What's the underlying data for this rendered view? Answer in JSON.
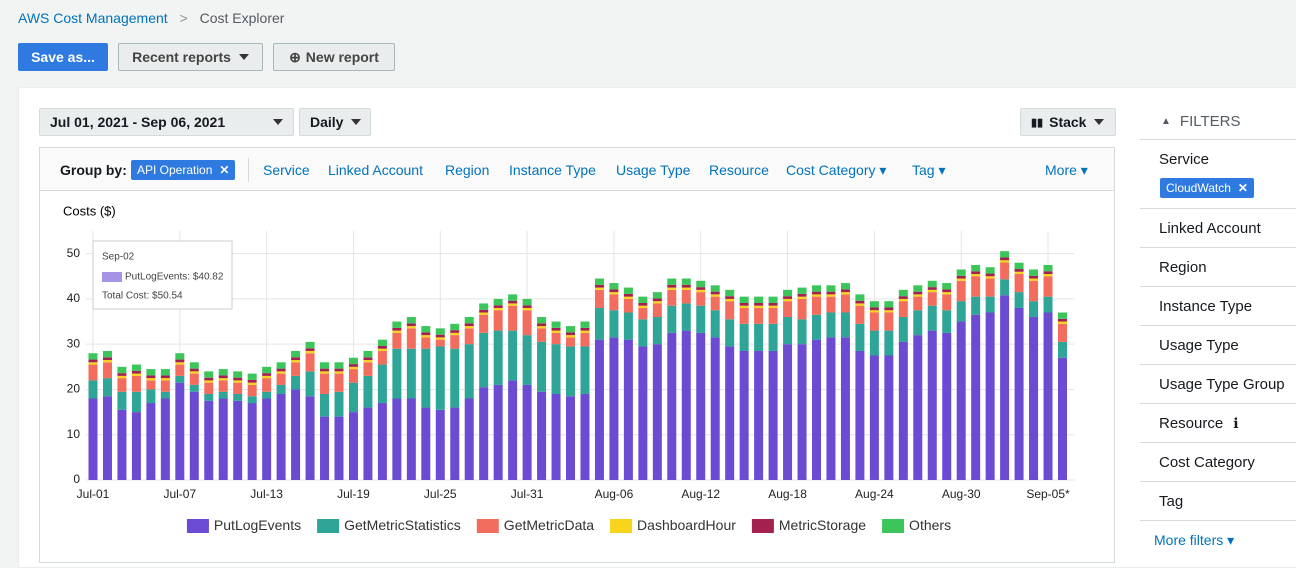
{
  "breadcrumb": {
    "root": "AWS Cost Management",
    "current": "Cost Explorer"
  },
  "toolbar": {
    "save": "Save as...",
    "recent": "Recent reports",
    "new": "New report"
  },
  "controls": {
    "date_range": "Jul 01, 2021 - Sep 06, 2021",
    "granularity": "Daily",
    "chart_style": "Stack"
  },
  "group_by": {
    "label": "Group by:",
    "selected": "API Operation",
    "options": [
      "Service",
      "Linked Account",
      "Region",
      "Instance Type",
      "Usage Type",
      "Resource",
      "Cost Category",
      "Tag",
      "More"
    ]
  },
  "filters": {
    "title": "FILTERS",
    "items": [
      "Service",
      "Linked Account",
      "Region",
      "Instance Type",
      "Usage Type",
      "Usage Type Group",
      "Resource",
      "Cost Category",
      "Tag"
    ],
    "service_chip": "CloudWatch",
    "more": "More filters"
  },
  "chart_data": {
    "type": "bar",
    "stacked": true,
    "y_label": "Costs ($)",
    "ylim": [
      0,
      55
    ],
    "yticks": [
      0,
      10,
      20,
      30,
      40,
      50
    ],
    "grid": true,
    "legend": "bottom",
    "categories": [
      "Jul-01",
      null,
      null,
      null,
      null,
      null,
      "Jul-07",
      null,
      null,
      null,
      null,
      null,
      "Jul-13",
      null,
      null,
      null,
      null,
      null,
      "Jul-19",
      null,
      null,
      null,
      null,
      null,
      "Jul-25",
      null,
      null,
      null,
      null,
      null,
      "Jul-31",
      null,
      null,
      null,
      null,
      null,
      "Aug-06",
      null,
      null,
      null,
      null,
      null,
      "Aug-12",
      null,
      null,
      null,
      null,
      null,
      "Aug-18",
      null,
      null,
      null,
      null,
      null,
      "Aug-24",
      null,
      null,
      null,
      null,
      null,
      "Aug-30",
      null,
      null,
      null,
      null,
      null,
      "Sep-05*",
      null
    ],
    "series": [
      {
        "name": "PutLogEvents",
        "color": "#6b4bd1",
        "values": [
          18,
          18.5,
          15.5,
          15,
          17,
          18,
          21.5,
          19.5,
          17.5,
          18,
          17.5,
          17,
          18,
          19,
          20,
          18.5,
          14,
          14,
          15,
          16,
          17,
          18,
          18,
          16,
          15.5,
          16,
          18,
          20.5,
          21,
          22,
          21,
          19.5,
          19,
          18.5,
          19,
          31,
          31.5,
          31,
          29.5,
          30,
          32.5,
          33,
          32.5,
          31.5,
          29.5,
          28.5,
          28.5,
          28.5,
          30,
          30,
          31,
          31.5,
          31.5,
          28.5,
          27.5,
          27.5,
          30.5,
          32,
          33,
          32.5,
          35,
          36.5,
          37,
          40.82,
          38,
          36,
          37,
          27
        ]
      },
      {
        "name": "GetMetricStatistics",
        "color": "#2ea597",
        "values": [
          4,
          4,
          4,
          4.5,
          3,
          1.5,
          1.5,
          1.5,
          1.5,
          1.5,
          1.5,
          1.5,
          1.5,
          2,
          3,
          5.5,
          5,
          5.5,
          6.5,
          7,
          8.5,
          11,
          11,
          13,
          14,
          13,
          12,
          12,
          12,
          11,
          11,
          11,
          11,
          11,
          10.5,
          7,
          6,
          6,
          6,
          6,
          6,
          6,
          6,
          6,
          6,
          6,
          6,
          6,
          6,
          5.5,
          5.5,
          5.5,
          5.5,
          6,
          5.5,
          5.5,
          5.5,
          5.5,
          5.5,
          5,
          4.5,
          4,
          3.5,
          3.5,
          3.5,
          3.5,
          3.5,
          3.5
        ]
      },
      {
        "name": "GetMetricData",
        "color": "#f36d5f",
        "values": [
          3.5,
          3.5,
          3,
          3.5,
          2,
          2.5,
          2.5,
          2.5,
          2.5,
          2.5,
          2.5,
          2.5,
          3,
          2.5,
          3,
          4,
          4.5,
          4,
          3,
          3,
          3,
          3.5,
          4.5,
          2.5,
          1.5,
          3,
          3.5,
          4,
          4.5,
          5.5,
          5.5,
          3,
          2.5,
          2,
          3,
          4,
          3.5,
          3,
          2.5,
          3,
          3.5,
          3,
          3,
          3,
          4,
          3.5,
          3.5,
          3.5,
          3.5,
          4.5,
          4,
          3.5,
          4,
          4,
          4,
          4,
          3.5,
          3,
          3,
          3.5,
          4.5,
          4.5,
          4,
          3.72,
          4,
          4.5,
          4.5,
          4
        ]
      },
      {
        "name": "DashboardHour",
        "color": "#f8d41c",
        "values": [
          0.5,
          0.5,
          0.5,
          0.5,
          0.5,
          0.5,
          0.5,
          0.5,
          0.5,
          0.5,
          0.5,
          0.5,
          0.5,
          0.5,
          0.5,
          0.5,
          0.5,
          0.5,
          0.5,
          0.5,
          0.5,
          0.5,
          0.5,
          0.5,
          0.5,
          0.5,
          0.5,
          0.5,
          0.5,
          0.5,
          0.5,
          0.5,
          0.5,
          0.5,
          0.5,
          0.5,
          0.5,
          0.5,
          0.5,
          0.5,
          0.5,
          0.5,
          0.5,
          0.5,
          0.5,
          0.5,
          0.5,
          0.5,
          0.5,
          0.5,
          0.5,
          0.5,
          0.5,
          0.5,
          0.5,
          0.5,
          0.5,
          0.5,
          0.5,
          0.5,
          0.5,
          0.5,
          0.5,
          0.5,
          0.5,
          0.5,
          0.5,
          0.5
        ]
      },
      {
        "name": "MetricStorage",
        "color": "#a3214f",
        "values": [
          0.6,
          0.6,
          0.6,
          0.6,
          0.6,
          0.6,
          0.6,
          0.6,
          0.6,
          0.6,
          0.6,
          0.6,
          0.6,
          0.6,
          0.6,
          0.6,
          0.6,
          0.6,
          0.6,
          0.6,
          0.6,
          0.6,
          0.6,
          0.6,
          0.6,
          0.6,
          0.6,
          0.6,
          0.6,
          0.6,
          0.6,
          0.6,
          0.6,
          0.6,
          0.6,
          0.6,
          0.6,
          0.6,
          0.6,
          0.6,
          0.6,
          0.6,
          0.6,
          0.6,
          0.6,
          0.6,
          0.6,
          0.6,
          0.6,
          0.6,
          0.6,
          0.6,
          0.6,
          0.6,
          0.6,
          0.6,
          0.6,
          0.6,
          0.6,
          0.6,
          0.6,
          0.6,
          0.6,
          0.6,
          0.6,
          0.6,
          0.6,
          0.6
        ]
      },
      {
        "name": "Others",
        "color": "#3cc55a",
        "values": [
          1.4,
          1.4,
          1.4,
          1.4,
          1.4,
          1.4,
          1.4,
          1.4,
          1.4,
          1.4,
          1.4,
          1.4,
          1.4,
          1.4,
          1.4,
          1.4,
          1.4,
          1.4,
          1.4,
          1.4,
          1.4,
          1.4,
          1.4,
          1.4,
          1.4,
          1.4,
          1.4,
          1.4,
          1.4,
          1.4,
          1.4,
          1.4,
          1.4,
          1.4,
          1.4,
          1.4,
          1.4,
          1.4,
          1.4,
          1.4,
          1.4,
          1.4,
          1.4,
          1.4,
          1.4,
          1.4,
          1.4,
          1.4,
          1.4,
          1.4,
          1.4,
          1.4,
          1.4,
          1.4,
          1.4,
          1.4,
          1.4,
          1.4,
          1.4,
          1.4,
          1.4,
          1.4,
          1.4,
          1.4,
          1.4,
          1.4,
          1.4,
          1.4
        ]
      }
    ],
    "tooltip": {
      "date": "Sep-02",
      "lines": [
        "PutLogEvents: $40.82",
        "Total Cost: $50.54"
      ]
    }
  }
}
